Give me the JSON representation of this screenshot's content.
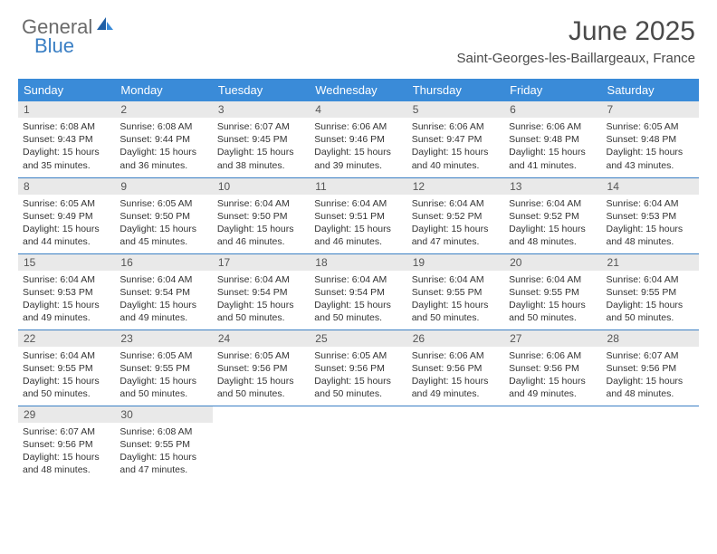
{
  "logo": {
    "text_general": "General",
    "text_blue": "Blue"
  },
  "header": {
    "title": "June 2025",
    "subtitle": "Saint-Georges-les-Baillargeaux, France"
  },
  "colors": {
    "brand_blue": "#3a7fc4",
    "header_blue": "#3a8bd8",
    "daynum_bg": "#e9e9e9",
    "text": "#333333",
    "subtext": "#4a4a4a",
    "white": "#ffffff"
  },
  "day_headers": [
    "Sunday",
    "Monday",
    "Tuesday",
    "Wednesday",
    "Thursday",
    "Friday",
    "Saturday"
  ],
  "days": [
    {
      "n": "1",
      "sr": "6:08 AM",
      "ss": "9:43 PM",
      "dh": 15,
      "dm": 35
    },
    {
      "n": "2",
      "sr": "6:08 AM",
      "ss": "9:44 PM",
      "dh": 15,
      "dm": 36
    },
    {
      "n": "3",
      "sr": "6:07 AM",
      "ss": "9:45 PM",
      "dh": 15,
      "dm": 38
    },
    {
      "n": "4",
      "sr": "6:06 AM",
      "ss": "9:46 PM",
      "dh": 15,
      "dm": 39
    },
    {
      "n": "5",
      "sr": "6:06 AM",
      "ss": "9:47 PM",
      "dh": 15,
      "dm": 40
    },
    {
      "n": "6",
      "sr": "6:06 AM",
      "ss": "9:48 PM",
      "dh": 15,
      "dm": 41
    },
    {
      "n": "7",
      "sr": "6:05 AM",
      "ss": "9:48 PM",
      "dh": 15,
      "dm": 43
    },
    {
      "n": "8",
      "sr": "6:05 AM",
      "ss": "9:49 PM",
      "dh": 15,
      "dm": 44
    },
    {
      "n": "9",
      "sr": "6:05 AM",
      "ss": "9:50 PM",
      "dh": 15,
      "dm": 45
    },
    {
      "n": "10",
      "sr": "6:04 AM",
      "ss": "9:50 PM",
      "dh": 15,
      "dm": 46
    },
    {
      "n": "11",
      "sr": "6:04 AM",
      "ss": "9:51 PM",
      "dh": 15,
      "dm": 46
    },
    {
      "n": "12",
      "sr": "6:04 AM",
      "ss": "9:52 PM",
      "dh": 15,
      "dm": 47
    },
    {
      "n": "13",
      "sr": "6:04 AM",
      "ss": "9:52 PM",
      "dh": 15,
      "dm": 48
    },
    {
      "n": "14",
      "sr": "6:04 AM",
      "ss": "9:53 PM",
      "dh": 15,
      "dm": 48
    },
    {
      "n": "15",
      "sr": "6:04 AM",
      "ss": "9:53 PM",
      "dh": 15,
      "dm": 49
    },
    {
      "n": "16",
      "sr": "6:04 AM",
      "ss": "9:54 PM",
      "dh": 15,
      "dm": 49
    },
    {
      "n": "17",
      "sr": "6:04 AM",
      "ss": "9:54 PM",
      "dh": 15,
      "dm": 50
    },
    {
      "n": "18",
      "sr": "6:04 AM",
      "ss": "9:54 PM",
      "dh": 15,
      "dm": 50
    },
    {
      "n": "19",
      "sr": "6:04 AM",
      "ss": "9:55 PM",
      "dh": 15,
      "dm": 50
    },
    {
      "n": "20",
      "sr": "6:04 AM",
      "ss": "9:55 PM",
      "dh": 15,
      "dm": 50
    },
    {
      "n": "21",
      "sr": "6:04 AM",
      "ss": "9:55 PM",
      "dh": 15,
      "dm": 50
    },
    {
      "n": "22",
      "sr": "6:04 AM",
      "ss": "9:55 PM",
      "dh": 15,
      "dm": 50
    },
    {
      "n": "23",
      "sr": "6:05 AM",
      "ss": "9:55 PM",
      "dh": 15,
      "dm": 50
    },
    {
      "n": "24",
      "sr": "6:05 AM",
      "ss": "9:56 PM",
      "dh": 15,
      "dm": 50
    },
    {
      "n": "25",
      "sr": "6:05 AM",
      "ss": "9:56 PM",
      "dh": 15,
      "dm": 50
    },
    {
      "n": "26",
      "sr": "6:06 AM",
      "ss": "9:56 PM",
      "dh": 15,
      "dm": 49
    },
    {
      "n": "27",
      "sr": "6:06 AM",
      "ss": "9:56 PM",
      "dh": 15,
      "dm": 49
    },
    {
      "n": "28",
      "sr": "6:07 AM",
      "ss": "9:56 PM",
      "dh": 15,
      "dm": 48
    },
    {
      "n": "29",
      "sr": "6:07 AM",
      "ss": "9:56 PM",
      "dh": 15,
      "dm": 48
    },
    {
      "n": "30",
      "sr": "6:08 AM",
      "ss": "9:55 PM",
      "dh": 15,
      "dm": 47
    }
  ],
  "labels": {
    "sunrise_prefix": "Sunrise: ",
    "sunset_prefix": "Sunset: ",
    "daylight_prefix": "Daylight: ",
    "hours_word": " hours",
    "and_word": " and ",
    "minutes_word": " minutes."
  }
}
